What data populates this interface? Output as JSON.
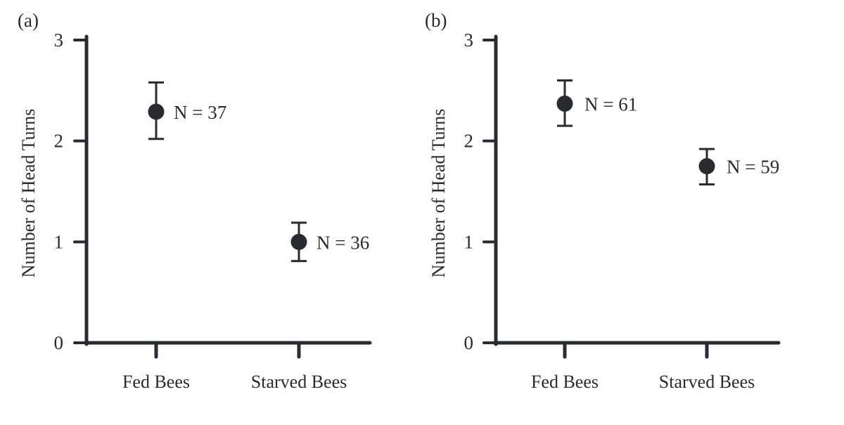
{
  "chart_data": [
    {
      "type": "scatter",
      "panel_label": "(a)",
      "ylabel": "Number of Head Turns",
      "xlabel": "",
      "categories": [
        "Fed Bees",
        "Starved Bees"
      ],
      "ylim": [
        0,
        3
      ],
      "yticks": [
        "0",
        "1",
        "2",
        "3"
      ],
      "grid": false,
      "points": [
        {
          "category": "Fed Bees",
          "mean": 2.29,
          "err_low": 2.02,
          "err_high": 2.58,
          "label": "N = 37"
        },
        {
          "category": "Starved Bees",
          "mean": 1.0,
          "err_low": 0.81,
          "err_high": 1.19,
          "label": "N = 36"
        }
      ]
    },
    {
      "type": "scatter",
      "panel_label": "(b)",
      "ylabel": "Number of Head Turns",
      "xlabel": "",
      "categories": [
        "Fed Bees",
        "Starved Bees"
      ],
      "ylim": [
        0,
        3
      ],
      "yticks": [
        "0",
        "1",
        "2",
        "3"
      ],
      "grid": false,
      "points": [
        {
          "category": "Fed Bees",
          "mean": 2.37,
          "err_low": 2.15,
          "err_high": 2.6,
          "label": "N = 61"
        },
        {
          "category": "Starved Bees",
          "mean": 1.75,
          "err_low": 1.57,
          "err_high": 1.92,
          "label": "N = 59"
        }
      ]
    }
  ],
  "colors": {
    "ink": "#2a2b31",
    "background": "#ffffff"
  }
}
